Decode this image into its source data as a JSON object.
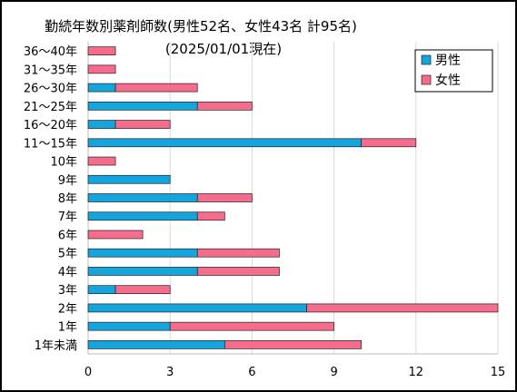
{
  "chart_data": {
    "type": "bar",
    "orientation": "horizontal",
    "stacked": true,
    "title": "勤続年数別薬剤師数(男性52名、女性43名  計95名)",
    "subtitle": "(2025/01/01現在)",
    "categories": [
      "36～40年",
      "31～35年",
      "26～30年",
      "21～25年",
      "16～20年",
      "11～15年",
      "10年",
      "9年",
      "8年",
      "7年",
      "6年",
      "5年",
      "4年",
      "3年",
      "2年",
      "1年",
      "1年未満"
    ],
    "series": [
      {
        "name": "男性",
        "color": "#14a5dc",
        "values": [
          0,
          0,
          1,
          4,
          1,
          10,
          0,
          3,
          4,
          4,
          0,
          4,
          4,
          1,
          8,
          3,
          5
        ]
      },
      {
        "name": "女性",
        "color": "#f56c8d",
        "values": [
          1,
          1,
          3,
          2,
          2,
          2,
          1,
          0,
          2,
          1,
          2,
          3,
          3,
          2,
          7,
          6,
          5
        ]
      }
    ],
    "xlim": [
      0,
      15
    ],
    "xticks": [
      0,
      3,
      6,
      9,
      12,
      15
    ],
    "grid": "vertical",
    "legend": "top-right",
    "xlabel": "",
    "ylabel": ""
  }
}
